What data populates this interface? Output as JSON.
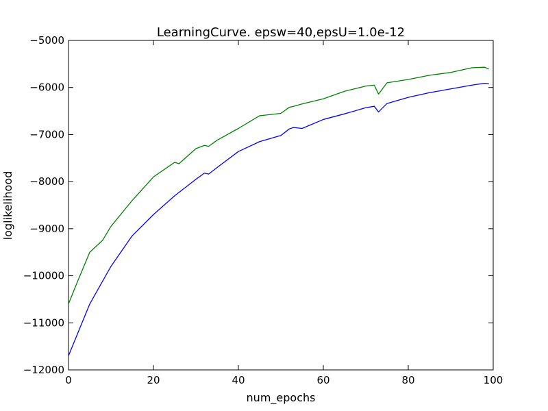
{
  "chart_data": {
    "type": "line",
    "title": "LearningCurve. epsw=40,epsU=1.0e-12",
    "xlabel": "num_epochs",
    "ylabel": "loglikelihood",
    "xlim": [
      0,
      100
    ],
    "ylim": [
      -12000,
      -5000
    ],
    "xticks": [
      0,
      20,
      40,
      60,
      80,
      100
    ],
    "yticks": [
      -12000,
      -11000,
      -10000,
      -9000,
      -8000,
      -7000,
      -6000,
      -5000
    ],
    "xtick_labels": [
      "0",
      "20",
      "40",
      "60",
      "80",
      "100"
    ],
    "ytick_labels": [
      "−12000",
      "−11000",
      "−10000",
      "−9000",
      "−8000",
      "−7000",
      "−6000",
      "−5000"
    ],
    "grid": false,
    "legend": "none",
    "series": [
      {
        "color": "#0000ff",
        "x": [
          0,
          5,
          10,
          15,
          20,
          25,
          30,
          32,
          33,
          35,
          40,
          45,
          50,
          52,
          53,
          55,
          60,
          65,
          70,
          72,
          73,
          75,
          80,
          85,
          90,
          95,
          98,
          99
        ],
        "values": [
          -11700,
          -10600,
          -9800,
          -9150,
          -8700,
          -8300,
          -7950,
          -7820,
          -7840,
          -7700,
          -7360,
          -7150,
          -7020,
          -6880,
          -6850,
          -6870,
          -6680,
          -6560,
          -6430,
          -6400,
          -6520,
          -6340,
          -6210,
          -6110,
          -6030,
          -5950,
          -5910,
          -5920
        ]
      },
      {
        "color": "#008000",
        "x": [
          0,
          2,
          5,
          8,
          10,
          15,
          20,
          25,
          26,
          30,
          32,
          33,
          35,
          40,
          45,
          50,
          52,
          53,
          55,
          60,
          65,
          70,
          72,
          73,
          75,
          80,
          85,
          90,
          95,
          98,
          99
        ],
        "values": [
          -10600,
          -10150,
          -9500,
          -9250,
          -8950,
          -8400,
          -7900,
          -7590,
          -7620,
          -7300,
          -7230,
          -7250,
          -7120,
          -6870,
          -6600,
          -6550,
          -6420,
          -6400,
          -6350,
          -6240,
          -6080,
          -5970,
          -5950,
          -6140,
          -5900,
          -5830,
          -5740,
          -5680,
          -5580,
          -5570,
          -5610
        ]
      }
    ]
  }
}
